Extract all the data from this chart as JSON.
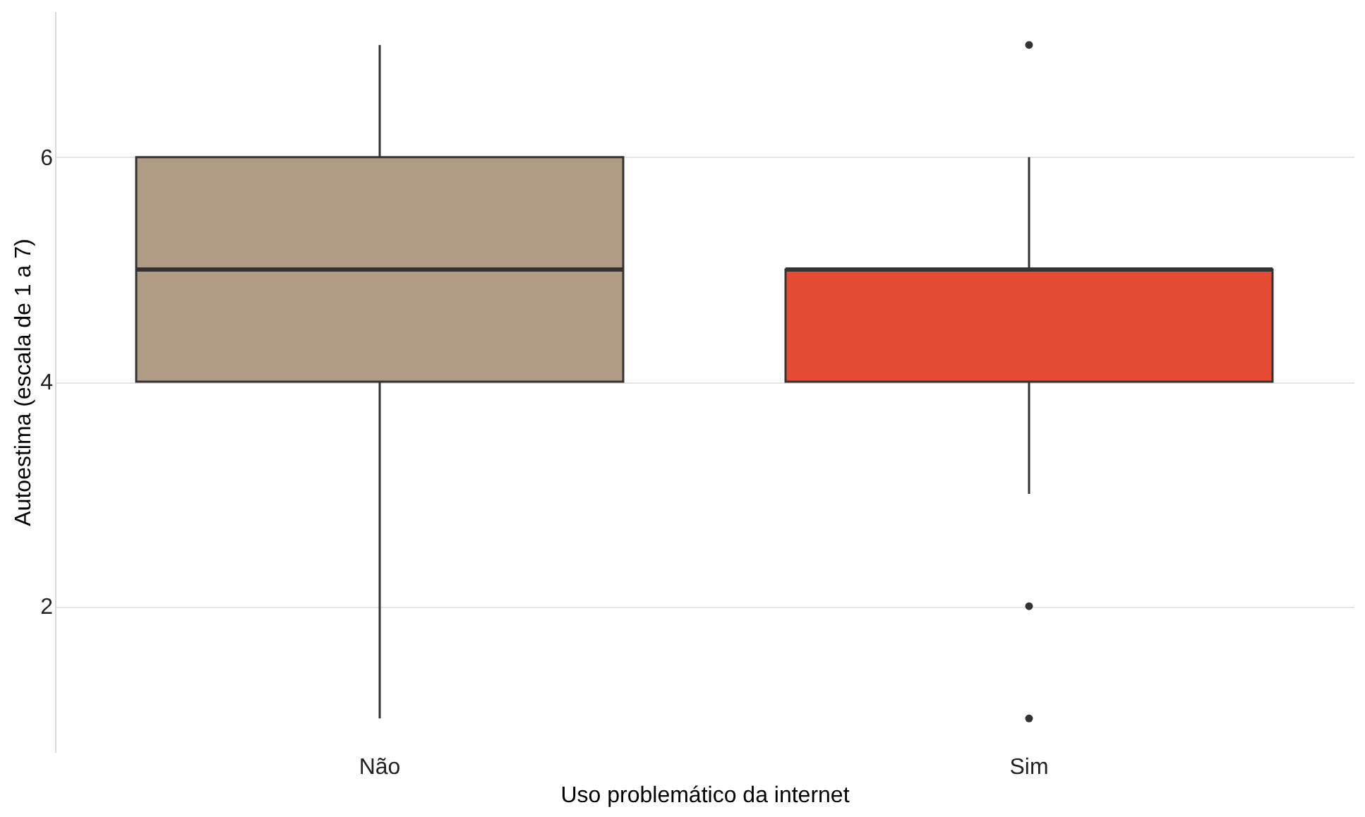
{
  "chart_data": {
    "type": "box",
    "xlabel": "Uso problemático da internet",
    "ylabel": "Autoestima (escala de 1 a 7)",
    "categories": [
      "Não",
      "Sim"
    ],
    "colors": [
      "#b09c85",
      "#e64b35"
    ],
    "boxes": [
      {
        "low": 1,
        "q1": 4,
        "median": 5,
        "q3": 6,
        "high": 7
      },
      {
        "low": 3,
        "q1": 4,
        "median": 5,
        "q3": 5,
        "high": 6,
        "outliers": [
          7,
          2,
          1
        ]
      }
    ],
    "ylim": [
      0.7,
      7.3
    ],
    "yticks": [
      2,
      4,
      6
    ],
    "grid": "y"
  }
}
